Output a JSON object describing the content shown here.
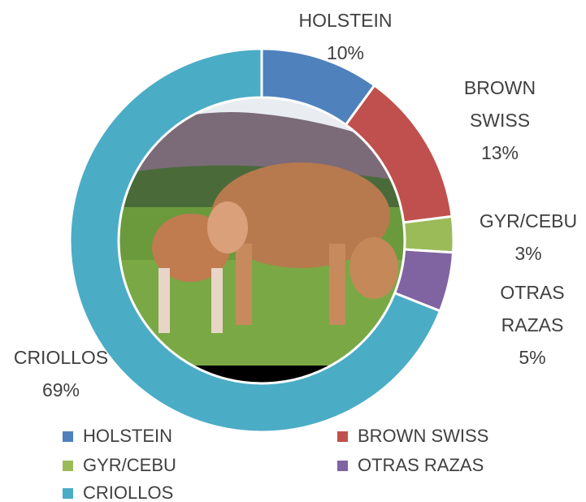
{
  "chart_data": {
    "type": "donut",
    "categories": [
      "HOLSTEIN",
      "BROWN SWISS",
      "GYR/CEBU",
      "OTRAS RAZAS",
      "CRIOLLOS"
    ],
    "values": [
      10,
      13,
      3,
      5,
      69
    ],
    "value_labels": [
      "10%",
      "13%",
      "3%",
      "5%",
      "69%"
    ],
    "colors": [
      "#4f81bd",
      "#c0504d",
      "#9bbb59",
      "#8064a2",
      "#4bacc6"
    ],
    "legend": "bottom"
  }
}
